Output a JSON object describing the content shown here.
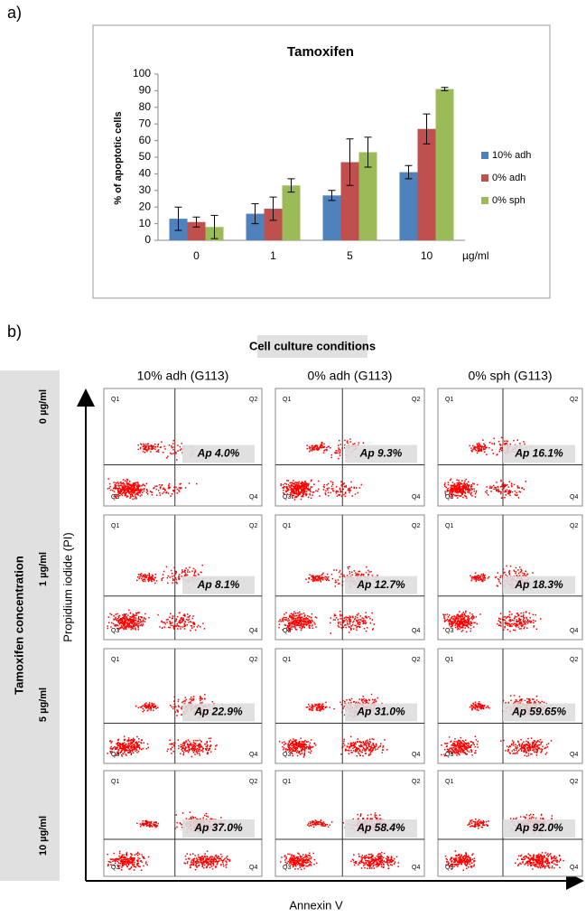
{
  "panel_labels": [
    "a)",
    "b)"
  ],
  "chart_data": {
    "type": "bar",
    "title": "Tamoxifen",
    "y_label": "% of apoptotic cells",
    "x_unit": "µg/ml",
    "categories": [
      "0",
      "1",
      "5",
      "10"
    ],
    "series": [
      {
        "name": "10% adh",
        "color": "#4f81bd",
        "values": [
          13,
          16,
          27,
          41
        ],
        "errors": [
          7,
          6,
          3,
          4
        ]
      },
      {
        "name": "0% adh",
        "color": "#c0504d",
        "values": [
          11,
          19,
          47,
          67
        ],
        "errors": [
          3,
          7,
          14,
          9
        ]
      },
      {
        "name": "0% sph",
        "color": "#9bbb59",
        "values": [
          8,
          33,
          53,
          91
        ],
        "errors": [
          7,
          4,
          9,
          1
        ]
      }
    ],
    "ylim": [
      0,
      100
    ],
    "yticks": [
      0,
      10,
      20,
      30,
      40,
      50,
      60,
      70,
      80,
      90,
      100
    ]
  },
  "flow": {
    "header": "Cell culture conditions",
    "columns": [
      "10% adh (G113)",
      "0% adh (G113)",
      "0% sph (G113)"
    ],
    "row_title": "Tamoxifen concentration",
    "rows": [
      "0 µg/ml",
      "1 µg/ml",
      "5 µg/ml",
      "10 µg/ml"
    ],
    "y_axis": "Propidium iodide (PI)",
    "x_axis": "Annexin V",
    "quadrants": [
      "Q1",
      "Q2",
      "Q3",
      "Q4"
    ],
    "ap": [
      [
        "Ap  4.0%",
        "Ap 9.3%",
        "Ap 16.1%"
      ],
      [
        "Ap 8.1%",
        "Ap 12.7%",
        "Ap 18.3%"
      ],
      [
        "Ap 22.9%",
        "Ap 31.0%",
        "Ap 59.65%"
      ],
      [
        "Ap 37.0%",
        "Ap 58.4%",
        "Ap 92.0%"
      ]
    ]
  }
}
